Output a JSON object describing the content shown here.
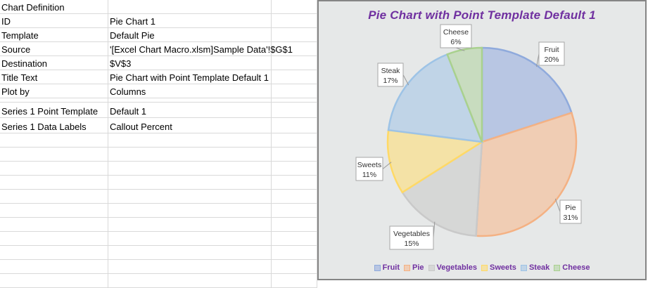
{
  "sheet": {
    "rows": [
      {
        "a": "Chart Definition",
        "b": ""
      },
      {
        "a": "ID",
        "b": "Pie Chart 1"
      },
      {
        "a": "Template",
        "b": "Default Pie"
      },
      {
        "a": "Source",
        "b": "'[Excel Chart Macro.xlsm]Sample Data'!$G$1"
      },
      {
        "a": "Destination",
        "b": "$V$3"
      },
      {
        "a": "Title Text",
        "b": "Pie Chart with Point Template Default 1"
      },
      {
        "a": "Plot by",
        "b": "Columns"
      },
      {
        "a": "",
        "b": ""
      },
      {
        "a": "Series 1 Point Template",
        "b": "Default 1"
      },
      {
        "a": "Series 1 Data Labels",
        "b": "Callout Percent"
      }
    ]
  },
  "colors": {
    "title": "#7030a0",
    "chart_bg": "#e6e8e8",
    "chart_border": "#858585"
  },
  "chart_data": {
    "type": "pie",
    "title": "Pie Chart with Point Template Default 1",
    "categories": [
      "Fruit",
      "Pie",
      "Vegetables",
      "Sweets",
      "Steak",
      "Cheese"
    ],
    "values": [
      20,
      31,
      15,
      11,
      17,
      6
    ],
    "labels": [
      "20%",
      "31%",
      "15%",
      "11%",
      "17%",
      "6%"
    ],
    "fill_colors": [
      "#b8c6e3",
      "#f0cdb4",
      "#d6d7d6",
      "#f4e2a6",
      "#c0d4e7",
      "#c8dcbf"
    ],
    "edge_colors": [
      "#8faadc",
      "#f4b183",
      "#c9c9c9",
      "#ffd966",
      "#9dc3e6",
      "#a9d18e"
    ],
    "legend_position": "bottom",
    "data_labels": "callout"
  }
}
